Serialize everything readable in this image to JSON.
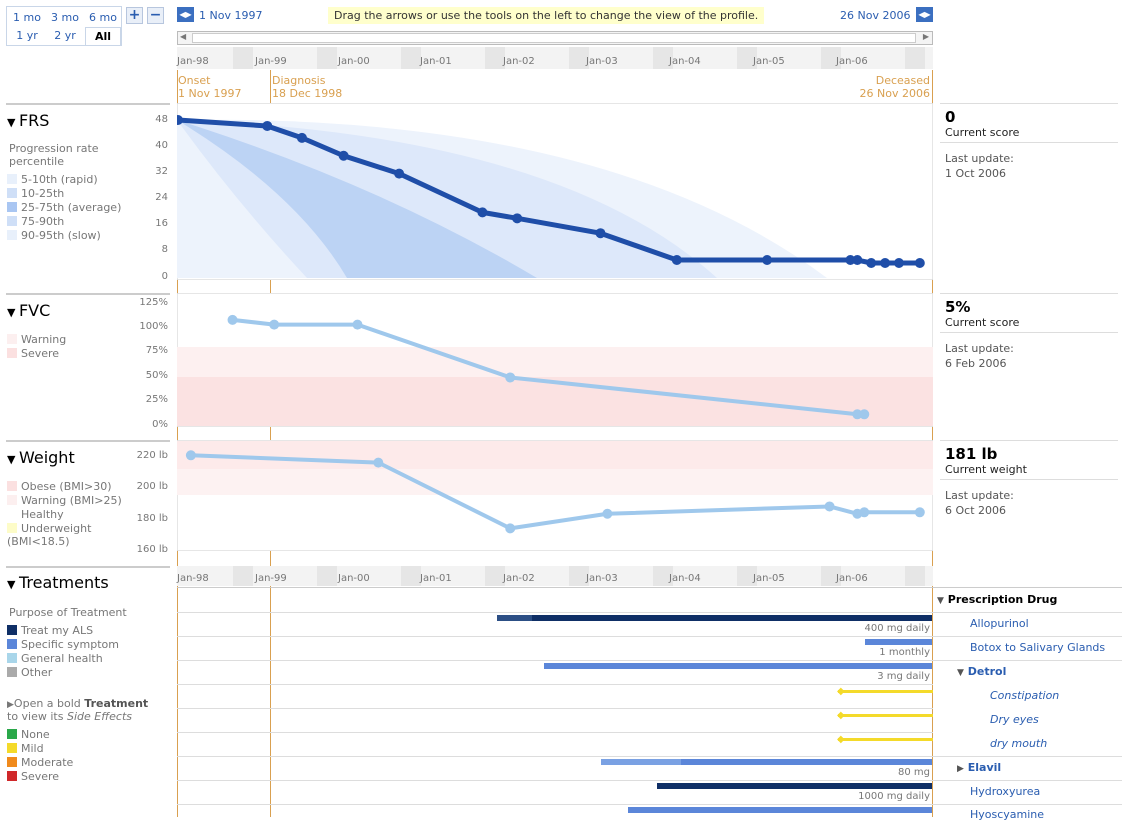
{
  "range": {
    "buttons": [
      "1 mo",
      "3 mo",
      "6 mo",
      "1 yr",
      "2 yr",
      "All"
    ],
    "zoom_in": "+",
    "zoom_out": "−"
  },
  "timeline": {
    "start_date": "1 Nov 1997",
    "end_date": "26 Nov 2006",
    "hint": "Drag the arrows or use the tools on the left to change the view of the profile.",
    "axis_labels": [
      "Jan-98",
      "Jan-99",
      "Jan-00",
      "Jan-01",
      "Jan-02",
      "Jan-03",
      "Jan-04",
      "Jan-05",
      "Jan-06"
    ],
    "markers": {
      "onset_label": "Onset",
      "onset_date": "1 Nov 1997",
      "diagnosis_label": "Diagnosis",
      "diagnosis_date": "18 Dec 1998",
      "deceased_label": "Deceased",
      "deceased_date": "26 Nov 2006"
    }
  },
  "frs": {
    "title": "FRS",
    "legend_title": "Progression rate percentile",
    "legend": [
      "5-10th (rapid)",
      "10-25th",
      "25-75th (average)",
      "75-90th",
      "90-95th (slow)"
    ],
    "yticks": [
      "48",
      "40",
      "32",
      "24",
      "16",
      "8",
      "0"
    ],
    "score": "0",
    "score_label": "Current score",
    "update_label": "Last update:",
    "update_date": "1 Oct 2006"
  },
  "fvc": {
    "title": "FVC",
    "legend": [
      "Warning",
      "Severe"
    ],
    "yticks": [
      "125%",
      "100%",
      "75%",
      "50%",
      "25%",
      "0%"
    ],
    "score": "5%",
    "score_label": "Current score",
    "update_label": "Last update:",
    "update_date": "6 Feb 2006"
  },
  "weight": {
    "title": "Weight",
    "legend": [
      "Obese (BMI>30)",
      "Warning (BMI>25)",
      "Healthy",
      "Underweight (BMI<18.5)"
    ],
    "yticks": [
      "220 lb",
      "200 lb",
      "180 lb",
      "160 lb"
    ],
    "score": "181 lb",
    "score_label": "Current weight",
    "update_label": "Last update:",
    "update_date": "6 Oct 2006"
  },
  "treatments": {
    "title": "Treatments",
    "purpose_title": "Purpose of Treatment",
    "purpose": [
      "Treat my ALS",
      "Specific symptom",
      "General health",
      "Other"
    ],
    "hint_prefix": "Open a bold",
    "hint_bold": "Treatment",
    "hint_mid": "to view its",
    "hint_italic": "Side Effects",
    "severity": [
      "None",
      "Mild",
      "Moderate",
      "Severe"
    ],
    "category": "Prescription Drug",
    "items": [
      {
        "name": "Allopurinol",
        "dose": "400 mg daily"
      },
      {
        "name": "Botox to Salivary Glands",
        "dose": "1  monthly"
      },
      {
        "name": "Detrol",
        "dose": "3 mg daily"
      },
      {
        "name": "Constipation",
        "dose": ""
      },
      {
        "name": "Dry eyes",
        "dose": ""
      },
      {
        "name": "dry mouth",
        "dose": ""
      },
      {
        "name": "Elavil",
        "dose": "80 mg"
      },
      {
        "name": "Hydroxyurea",
        "dose": "1000 mg daily"
      },
      {
        "name": "Hyoscyamine",
        "dose": ""
      }
    ]
  },
  "colors": {
    "frs_line": "#1f4ea8",
    "fvc_line": "#9fc8ec",
    "accent_orange": "#d9a050",
    "treat_als": "#0f2f66",
    "specific_symptom": "#5b86d9",
    "general_health": "#a9d6ea",
    "other": "#aaaaaa",
    "severity_none": "#2aa84a",
    "severity_mild": "#f4da2a",
    "severity_moderate": "#f08a1c",
    "severity_severe": "#d0282a"
  },
  "chart_data": [
    {
      "type": "line",
      "title": "FRS",
      "x": [
        "1997-11",
        "1998-12",
        "1999-05",
        "1999-11",
        "2000-07",
        "2001-07",
        "2001-12",
        "2002-12",
        "2003-11",
        "2004-12",
        "2005-12",
        "2006-01",
        "2006-03",
        "2006-05",
        "2006-07",
        "2006-10"
      ],
      "values": [
        48,
        46,
        42,
        36,
        30,
        17,
        15,
        10,
        1,
        1,
        1,
        1,
        0,
        0,
        0,
        0
      ],
      "ylim": [
        0,
        48
      ]
    },
    {
      "type": "line",
      "title": "FVC",
      "x": [
        "1998-07",
        "1999-01",
        "2000-01",
        "2001-11",
        "2006-01",
        "2006-02"
      ],
      "values": [
        105,
        100,
        100,
        44,
        5,
        5
      ],
      "ylim": [
        0,
        125
      ]
    },
    {
      "type": "line",
      "title": "Weight",
      "x": [
        "1998-01",
        "2000-04",
        "2001-11",
        "2003-01",
        "2005-09",
        "2006-01",
        "2006-02",
        "2006-10"
      ],
      "values": [
        220,
        215,
        170,
        180,
        185,
        180,
        181,
        181
      ],
      "ylim": [
        160,
        225
      ]
    }
  ]
}
